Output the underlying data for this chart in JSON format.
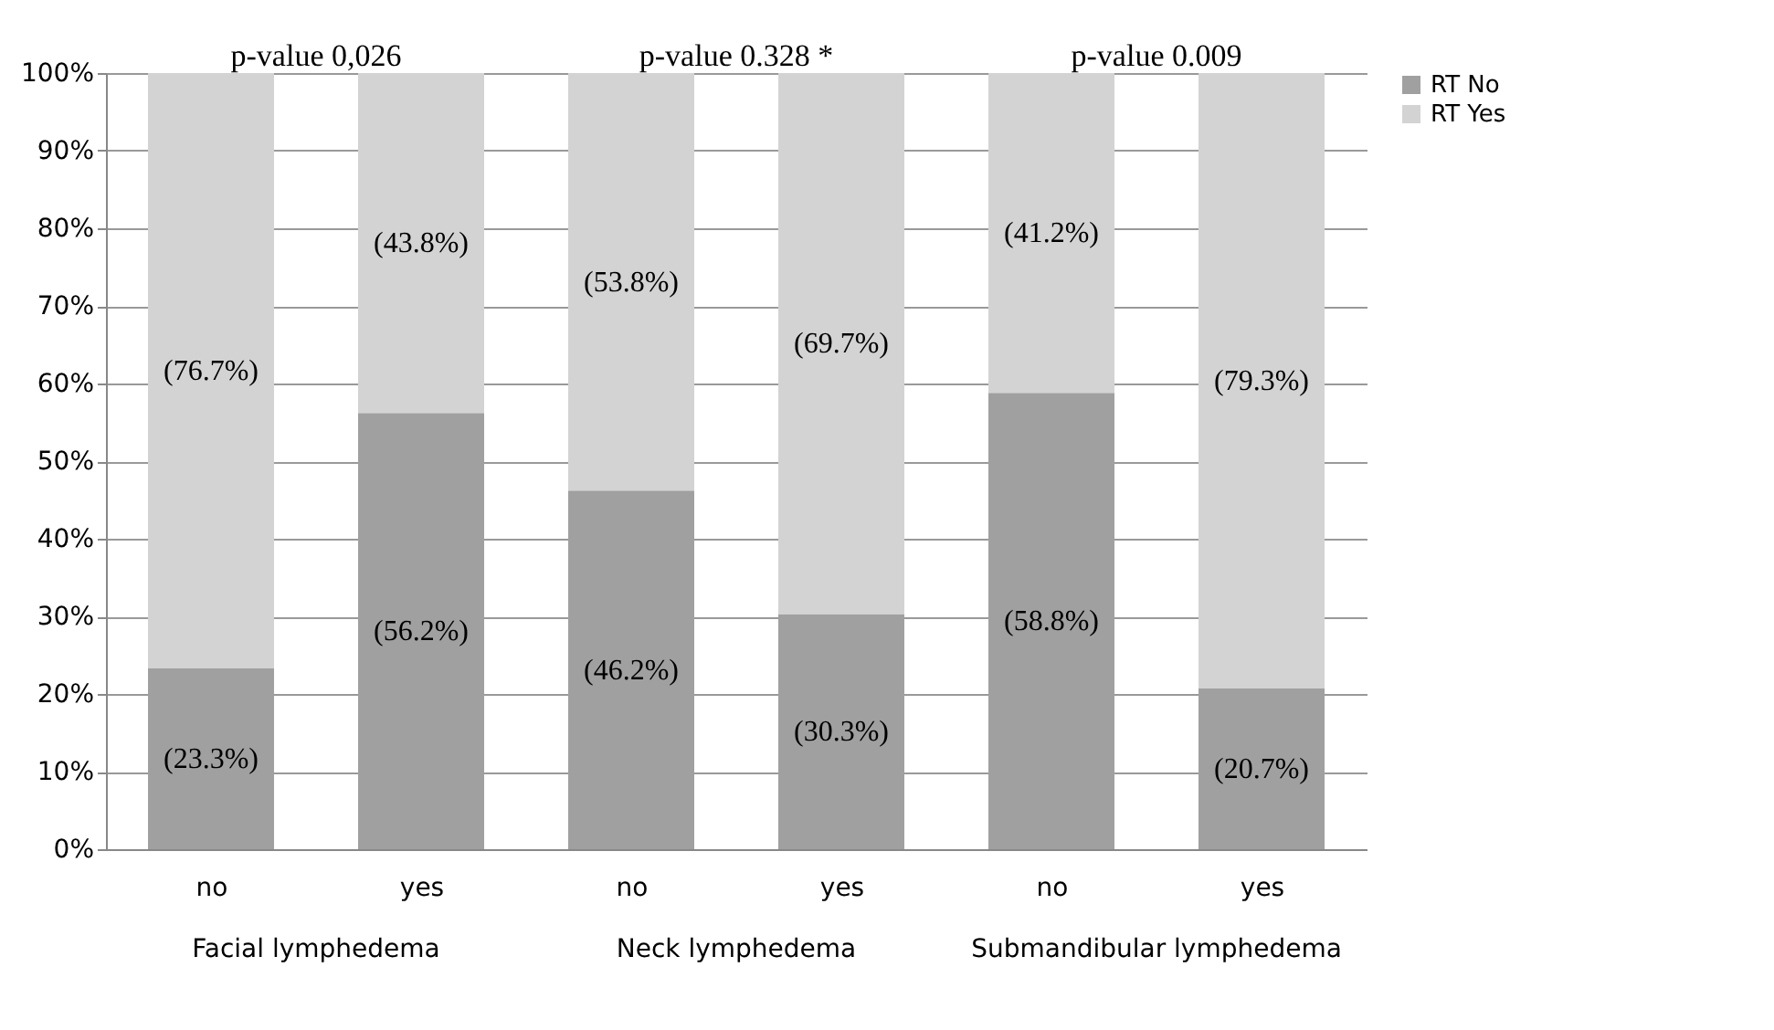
{
  "chart_data": {
    "type": "bar",
    "stacked": true,
    "categories": [
      "no",
      "yes",
      "no",
      "yes",
      "no",
      "yes"
    ],
    "series": [
      {
        "name": "RT No",
        "color": "#a0a0a0",
        "values": [
          23.3,
          56.2,
          46.2,
          30.3,
          58.8,
          20.7
        ],
        "value_labels": [
          "(23.3%)",
          "(56.2%)",
          "(46.2%)",
          "(30.3%)",
          "(58.8%)",
          "(20.7%)"
        ]
      },
      {
        "name": "RT Yes",
        "color": "#d3d3d3",
        "values": [
          76.7,
          43.8,
          53.8,
          69.7,
          41.2,
          79.3
        ],
        "value_labels": [
          "(76.7%)",
          "(43.8%)",
          "(53.8%)",
          "(69.7%)",
          "(41.2%)",
          "(79.3%)"
        ]
      }
    ],
    "ylim": [
      0,
      100
    ],
    "yticks": [
      {
        "value": 0,
        "label": "0%"
      },
      {
        "value": 10,
        "label": "10%"
      },
      {
        "value": 20,
        "label": "20%"
      },
      {
        "value": 30,
        "label": "30%"
      },
      {
        "value": 40,
        "label": "40%"
      },
      {
        "value": 50,
        "label": "50%"
      },
      {
        "value": 60,
        "label": "60%"
      },
      {
        "value": 70,
        "label": "70%"
      },
      {
        "value": 80,
        "label": "80%"
      },
      {
        "value": 90,
        "label": "90%"
      },
      {
        "value": 100,
        "label": "100%"
      }
    ],
    "grid": "y",
    "legend": "right",
    "annotations": [
      "p-value 0,026",
      "p-value 0.328 *",
      "p-value 0.009",
      "Facial lymphedema",
      "Neck lymphedema",
      "Submandibular lymphedema"
    ]
  }
}
